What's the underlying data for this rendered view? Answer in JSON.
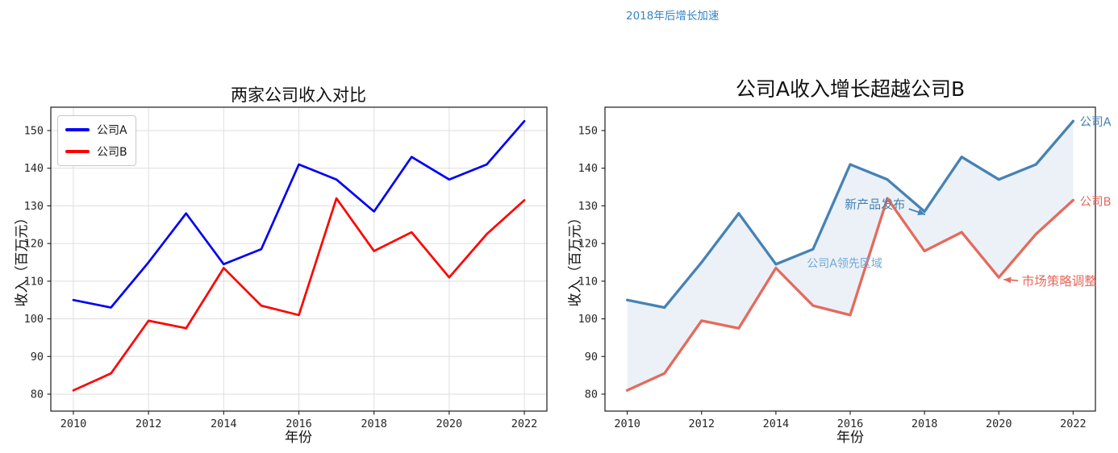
{
  "figure_annotation": {
    "text": "2018年后增长加速",
    "color": "#3585c5"
  },
  "chart_data": [
    {
      "type": "line",
      "title": "两家公司收入对比",
      "xlabel": "年份",
      "ylabel": "收入（百万元）",
      "x": [
        2010,
        2011,
        2012,
        2013,
        2014,
        2015,
        2016,
        2017,
        2018,
        2019,
        2020,
        2021,
        2022
      ],
      "series": [
        {
          "name": "公司A",
          "color": "#0000f5",
          "values": [
            105,
            103,
            115,
            128,
            114.5,
            118.5,
            141,
            137,
            128.5,
            143,
            137,
            141,
            152.5
          ]
        },
        {
          "name": "公司B",
          "color": "#ff0000",
          "values": [
            81,
            85.5,
            99.5,
            97.5,
            113.5,
            103.5,
            101,
            132,
            118,
            123,
            111,
            122.5,
            131.5
          ]
        }
      ],
      "xticks": [
        2010,
        2012,
        2014,
        2016,
        2018,
        2020,
        2022
      ],
      "yticks": [
        80,
        90,
        100,
        110,
        120,
        130,
        140,
        150
      ],
      "xlim": [
        2009.4,
        2022.6
      ],
      "ylim": [
        75.5,
        156.2
      ],
      "grid": true,
      "legend": {
        "position": "upper left"
      }
    },
    {
      "type": "line",
      "title": "公司A收入增长超越公司B",
      "xlabel": "年份",
      "ylabel": "收入（百万元）",
      "x": [
        2010,
        2011,
        2012,
        2013,
        2014,
        2015,
        2016,
        2017,
        2018,
        2019,
        2020,
        2021,
        2022
      ],
      "series": [
        {
          "name": "公司A",
          "color": "#4682b4",
          "values": [
            105,
            103,
            115,
            128,
            114.5,
            118.5,
            141,
            137,
            128.5,
            143,
            137,
            141,
            152.5
          ]
        },
        {
          "name": "公司B",
          "color": "#e56a5c",
          "values": [
            81,
            85.5,
            99.5,
            97.5,
            113.5,
            103.5,
            101,
            132,
            118,
            123,
            111,
            122.5,
            131.5
          ]
        }
      ],
      "xticks": [
        2010,
        2012,
        2014,
        2016,
        2018,
        2020,
        2022
      ],
      "yticks": [
        80,
        90,
        100,
        110,
        120,
        130,
        140,
        150
      ],
      "xlim": [
        2009.4,
        2022.6
      ],
      "ylim": [
        75.5,
        156.2
      ],
      "grid": false,
      "fill_between": {
        "color": "#4682b4",
        "opacity": 0.11
      },
      "annotations": [
        {
          "name": "new-product-launch",
          "text": "新产品发布",
          "color": "#4682b4",
          "anchor": "end",
          "x": 2017.48,
          "y": 130.4,
          "size": 15,
          "arrow": {
            "from": [
              2017.58,
              129.2
            ],
            "to": [
              2018.02,
              127.7
            ]
          }
        },
        {
          "name": "company-a-lead-area",
          "text": "公司A领先区域",
          "color": "#6fa7d6",
          "anchor": "middle",
          "x": 2015.85,
          "y": 114.8,
          "size": 14
        },
        {
          "name": "market-strategy-adjust",
          "text": "市场策略调整",
          "color": "#e56a5c",
          "anchor": "start",
          "x": 2020.62,
          "y": 110.0,
          "size": 15.5,
          "arrow": {
            "from": [
              2020.52,
              110.15
            ],
            "to": [
              2020.13,
              110.45
            ]
          }
        },
        {
          "name": "line-end-label-company-a",
          "text": "公司A",
          "color": "#4682b4",
          "anchor": "start",
          "x": 2022.18,
          "y": 152.3,
          "size": 14.5
        },
        {
          "name": "line-end-label-company-b",
          "text": "公司B",
          "color": "#e56a5c",
          "anchor": "start",
          "x": 2022.18,
          "y": 131.2,
          "size": 14.5
        }
      ]
    }
  ]
}
